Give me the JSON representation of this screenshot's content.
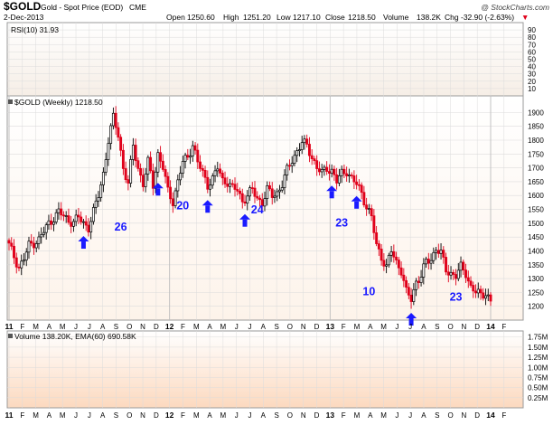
{
  "header": {
    "symbol": "$GOLD",
    "name": "Gold - Spot Price (EOD)",
    "exchange": "CME",
    "date": "2-Dec-2013",
    "open_label": "Open",
    "open": "1250.60",
    "high_label": "High",
    "high": "1251.20",
    "low_label": "Low",
    "low": "1217.10",
    "close_label": "Close",
    "close": "1218.50",
    "volume_label": "Volume",
    "volume": "138.2K",
    "chg_label": "Chg",
    "chg": "-32.90 (-2.63%)",
    "chg_arrow": "▼",
    "watermark": "@ StockCharts.com"
  },
  "panels": {
    "rsi_label": "RSI(10) 31.93",
    "price_label": "$GOLD (Weekly) 1218.50",
    "volume_label": "Volume 138.20K, EMA(60) 690.58K"
  },
  "colors": {
    "up": "#000000",
    "down": "#e0001a",
    "annotation": "#1a1aff",
    "grid": "#dcdcdc",
    "panel_bg_top": "#f7f0ea",
    "panel_bg_bottom": "#fde9d8"
  },
  "chart_data": {
    "type": "candlestick",
    "title": "$GOLD Gold - Spot Price (EOD)",
    "price_axis": {
      "ylim": [
        1150,
        1960
      ],
      "ticks": [
        "1200",
        "1250",
        "1300",
        "1350",
        "1400",
        "1450",
        "1500",
        "1550",
        "1600",
        "1650",
        "1700",
        "1750",
        "1800",
        "1850",
        "1900"
      ],
      "side": "right"
    },
    "rsi_axis": {
      "ylim": [
        0,
        100
      ],
      "ticks": [
        "10",
        "20",
        "30",
        "40",
        "50",
        "60",
        "70",
        "80",
        "90"
      ]
    },
    "volume_axis": {
      "ylim": [
        0,
        1.9
      ],
      "ticks": [
        "0.25M",
        "0.50M",
        "0.75M",
        "1.00M",
        "1.25M",
        "1.50M",
        "1.75M"
      ]
    },
    "x_axis": {
      "labels": [
        "11",
        "F",
        "M",
        "A",
        "M",
        "J",
        "J",
        "A",
        "S",
        "O",
        "N",
        "D",
        "12",
        "F",
        "M",
        "A",
        "M",
        "J",
        "J",
        "A",
        "S",
        "O",
        "N",
        "D",
        "13",
        "F",
        "M",
        "A",
        "M",
        "J",
        "J",
        "A",
        "S",
        "O",
        "N",
        "D",
        "14",
        "F"
      ],
      "year_labels": [
        "11",
        "12",
        "13",
        "14"
      ]
    },
    "close_path": [
      [
        0,
        1420
      ],
      [
        2,
        1380
      ],
      [
        4,
        1340
      ],
      [
        6,
        1370
      ],
      [
        8,
        1420
      ],
      [
        10,
        1430
      ],
      [
        12,
        1440
      ],
      [
        14,
        1470
      ],
      [
        16,
        1500
      ],
      [
        18,
        1520
      ],
      [
        20,
        1540
      ],
      [
        22,
        1525
      ],
      [
        24,
        1510
      ],
      [
        26,
        1505
      ],
      [
        28,
        1520
      ],
      [
        30,
        1500
      ],
      [
        32,
        1485
      ],
      [
        34,
        1540
      ],
      [
        36,
        1600
      ],
      [
        38,
        1680
      ],
      [
        40,
        1800
      ],
      [
        42,
        1880
      ],
      [
        44,
        1820
      ],
      [
        46,
        1700
      ],
      [
        48,
        1640
      ],
      [
        50,
        1780
      ],
      [
        52,
        1700
      ],
      [
        54,
        1640
      ],
      [
        56,
        1720
      ],
      [
        58,
        1640
      ],
      [
        60,
        1750
      ],
      [
        62,
        1700
      ],
      [
        64,
        1615
      ],
      [
        66,
        1580
      ],
      [
        68,
        1650
      ],
      [
        70,
        1720
      ],
      [
        72,
        1740
      ],
      [
        74,
        1785
      ],
      [
        76,
        1720
      ],
      [
        78,
        1680
      ],
      [
        80,
        1640
      ],
      [
        82,
        1660
      ],
      [
        84,
        1700
      ],
      [
        86,
        1655
      ],
      [
        88,
        1650
      ],
      [
        90,
        1625
      ],
      [
        92,
        1620
      ],
      [
        94,
        1580
      ],
      [
        96,
        1600
      ],
      [
        98,
        1620
      ],
      [
        100,
        1590
      ],
      [
        102,
        1575
      ],
      [
        104,
        1620
      ],
      [
        106,
        1600
      ],
      [
        108,
        1610
      ],
      [
        110,
        1640
      ],
      [
        112,
        1690
      ],
      [
        114,
        1730
      ],
      [
        116,
        1760
      ],
      [
        118,
        1790
      ],
      [
        120,
        1780
      ],
      [
        122,
        1740
      ],
      [
        124,
        1700
      ],
      [
        126,
        1680
      ],
      [
        128,
        1700
      ],
      [
        130,
        1690
      ],
      [
        132,
        1650
      ],
      [
        134,
        1680
      ],
      [
        136,
        1690
      ],
      [
        138,
        1660
      ],
      [
        140,
        1640
      ],
      [
        142,
        1610
      ],
      [
        144,
        1560
      ],
      [
        146,
        1520
      ],
      [
        148,
        1420
      ],
      [
        150,
        1380
      ],
      [
        152,
        1340
      ],
      [
        154,
        1400
      ],
      [
        156,
        1360
      ],
      [
        158,
        1330
      ],
      [
        160,
        1250
      ],
      [
        162,
        1225
      ],
      [
        164,
        1290
      ],
      [
        166,
        1310
      ],
      [
        168,
        1360
      ],
      [
        170,
        1370
      ],
      [
        172,
        1410
      ],
      [
        174,
        1390
      ],
      [
        176,
        1330
      ],
      [
        178,
        1320
      ],
      [
        180,
        1310
      ],
      [
        182,
        1340
      ],
      [
        184,
        1320
      ],
      [
        186,
        1270
      ],
      [
        188,
        1250
      ],
      [
        190,
        1240
      ],
      [
        192,
        1250
      ],
      [
        194,
        1218.5
      ]
    ],
    "bottom_arrows": [
      30,
      60,
      80,
      140
    ],
    "top_arrows": [
      95,
      130
    ],
    "annotations": [
      {
        "text": "26",
        "index": 45,
        "price": 1473
      },
      {
        "text": "20",
        "index": 70,
        "price": 1550
      },
      {
        "text": "24",
        "index": 100,
        "price": 1535
      },
      {
        "text": "23",
        "index": 134,
        "price": 1488
      },
      {
        "text": "10",
        "index": 145,
        "price": 1240
      },
      {
        "text": "23",
        "index": 180,
        "price": 1220
      }
    ],
    "volume_note": "Volume panel visible but bars not shown in window"
  }
}
